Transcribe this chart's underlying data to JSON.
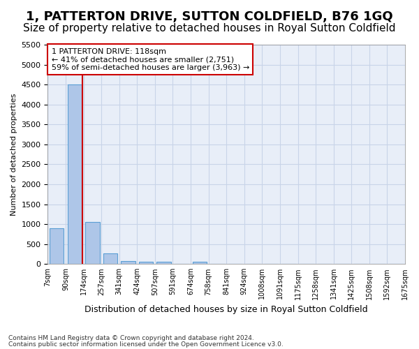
{
  "title": "1, PATTERTON DRIVE, SUTTON COLDFIELD, B76 1GQ",
  "subtitle": "Size of property relative to detached houses in Royal Sutton Coldfield",
  "xlabel": "Distribution of detached houses by size in Royal Sutton Coldfield",
  "ylabel": "Number of detached properties",
  "footnote1": "Contains HM Land Registry data © Crown copyright and database right 2024.",
  "footnote2": "Contains public sector information licensed under the Open Government Licence v3.0.",
  "bin_labels": [
    "7sqm",
    "90sqm",
    "174sqm",
    "257sqm",
    "341sqm",
    "424sqm",
    "507sqm",
    "591sqm",
    "674sqm",
    "758sqm",
    "841sqm",
    "924sqm",
    "1008sqm",
    "1091sqm",
    "1175sqm",
    "1258sqm",
    "1341sqm",
    "1425sqm",
    "1508sqm",
    "1592sqm",
    "1675sqm"
  ],
  "bar_values": [
    900,
    4500,
    1050,
    270,
    70,
    60,
    50,
    0,
    60,
    0,
    0,
    0,
    0,
    0,
    0,
    0,
    0,
    0,
    0,
    0
  ],
  "bar_color": "#aec6e8",
  "bar_edge_color": "#5a9fd4",
  "property_line_color": "#cc0000",
  "property_line_x": 1.45,
  "annotation_text": "1 PATTERTON DRIVE: 118sqm\n← 41% of detached houses are smaller (2,751)\n59% of semi-detached houses are larger (3,963) →",
  "annotation_box_color": "#cc0000",
  "ylim": [
    0,
    5500
  ],
  "yticks": [
    0,
    500,
    1000,
    1500,
    2000,
    2500,
    3000,
    3500,
    4000,
    4500,
    5000,
    5500
  ],
  "grid_color": "#c8d4e8",
  "bg_color": "#e8eef8",
  "title_fontsize": 13,
  "subtitle_fontsize": 11
}
